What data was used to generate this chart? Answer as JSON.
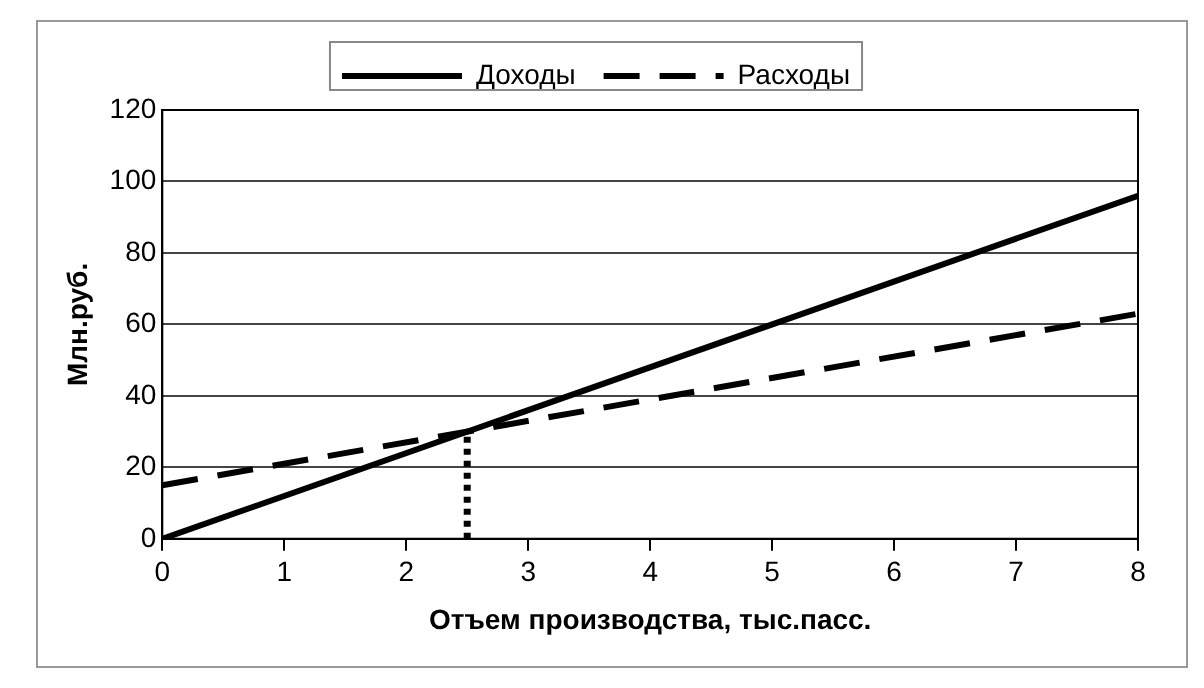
{
  "chart_data": {
    "type": "line",
    "xlabel": "Отъем производства, тыс.пасс.",
    "ylabel": "Млн.руб.",
    "xlim": [
      0,
      8
    ],
    "xticks": [
      0,
      1,
      2,
      3,
      4,
      5,
      6,
      7,
      8
    ],
    "ylim": [
      0,
      120
    ],
    "yticks": [
      0,
      20,
      40,
      60,
      80,
      100,
      120
    ],
    "grid": "y",
    "legend": "top",
    "marker": "none",
    "series": [
      {
        "name": "Доходы",
        "color": "#000000",
        "x": [
          0,
          8
        ],
        "values": [
          0,
          96
        ],
        "line_style": "solid"
      },
      {
        "name": "Расходы",
        "color": "#000000",
        "x": [
          0,
          8
        ],
        "values": [
          15,
          63
        ],
        "line_style": "dashed"
      },
      {
        "color": "#000000",
        "x": [
          2.5,
          2.5
        ],
        "values": [
          0,
          30
        ],
        "line_style": "dotted"
      }
    ]
  }
}
